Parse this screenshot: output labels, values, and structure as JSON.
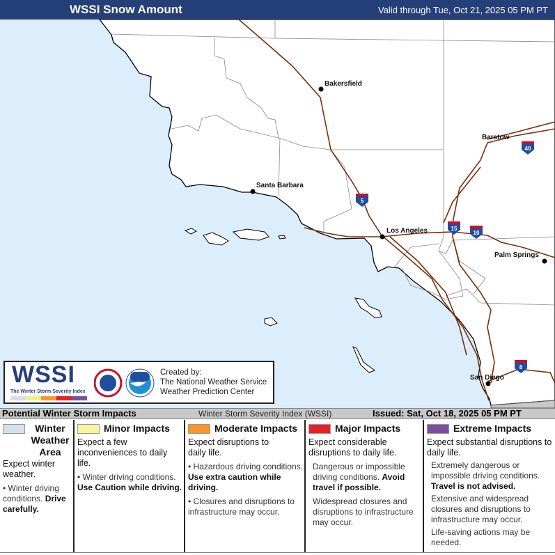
{
  "header": {
    "title": "WSSI Snow Amount",
    "valid": "Valid through Tue, Oct 21, 2025 05 PM PT",
    "bg": "#253f78"
  },
  "map": {
    "colors": {
      "ocean": "#dcedfb",
      "land": "#ffffff",
      "highway": "#7a2e0a",
      "county": "#888888",
      "mexico": "#c8c8c8"
    },
    "cities": [
      {
        "name": "Bakersfield"
      },
      {
        "name": "Barstow"
      },
      {
        "name": "Santa Barbara"
      },
      {
        "name": "Los Angeles"
      },
      {
        "name": "Palm Springs"
      },
      {
        "name": "San Diego"
      }
    ],
    "shields": [
      {
        "label": "5"
      },
      {
        "label": "15"
      },
      {
        "label": "10"
      },
      {
        "label": "40"
      },
      {
        "label": "8"
      }
    ]
  },
  "logo": {
    "wordmark": "WSSI",
    "tagline": "The Winter Storm Severity Index",
    "scale_colors": [
      "#d8dce8",
      "#eef08c",
      "#f7962f",
      "#e4222b",
      "#7b4fa0"
    ],
    "credit_line1": "Created by:",
    "credit_line2": "The National Weather Service",
    "credit_line3": "Weather Prediction Center"
  },
  "legend": {
    "title": "Potential Winter Storm Impacts",
    "index_name": "Winter Storm Severity Index (WSSI)",
    "issued": "Issued: Sat, Oct 18, 2025 05 PM PT",
    "categories": [
      {
        "name": "Winter Weather Area",
        "color": "#d6e0ea",
        "summary": "Expect winter weather.",
        "notes": [
          {
            "text": "Winter driving conditions. ",
            "bold": "Drive carefully."
          }
        ]
      },
      {
        "name": "Minor Impacts",
        "color": "#f8f4a0",
        "summary": "Expect a few inconveniences to daily life.",
        "notes": [
          {
            "text": "Winter driving conditions. ",
            "bold": "Use Caution while driving."
          }
        ]
      },
      {
        "name": "Moderate Impacts",
        "color": "#f7962f",
        "summary": "Expect disruptions to daily life.",
        "notes": [
          {
            "text": "Hazardous driving conditions. ",
            "bold": "Use extra caution while driving."
          },
          {
            "text": "Closures and disruptions to infrastructure may occur.",
            "bold": ""
          }
        ]
      },
      {
        "name": "Major Impacts",
        "color": "#e4222b",
        "summary": "Expect considerable disruptions to daily life.",
        "notes": [
          {
            "text": "Dangerous or impossible driving conditions. ",
            "bold": "Avoid travel if possible."
          },
          {
            "text": "Widespread closures and disruptions to infrastructure may occur.",
            "bold": ""
          }
        ]
      },
      {
        "name": "Extreme Impacts",
        "color": "#7b4fa0",
        "summary": "Expect substantial disruptions to daily life.",
        "notes": [
          {
            "text": "Extremely dangerous or impossible driving conditions. ",
            "bold": "Travel is not advised."
          },
          {
            "text": "Extensive and widespread closures and disruptions to infrastructure may occur.",
            "bold": ""
          },
          {
            "text": "Life-saving actions may be needed.",
            "bold": ""
          }
        ]
      }
    ]
  }
}
